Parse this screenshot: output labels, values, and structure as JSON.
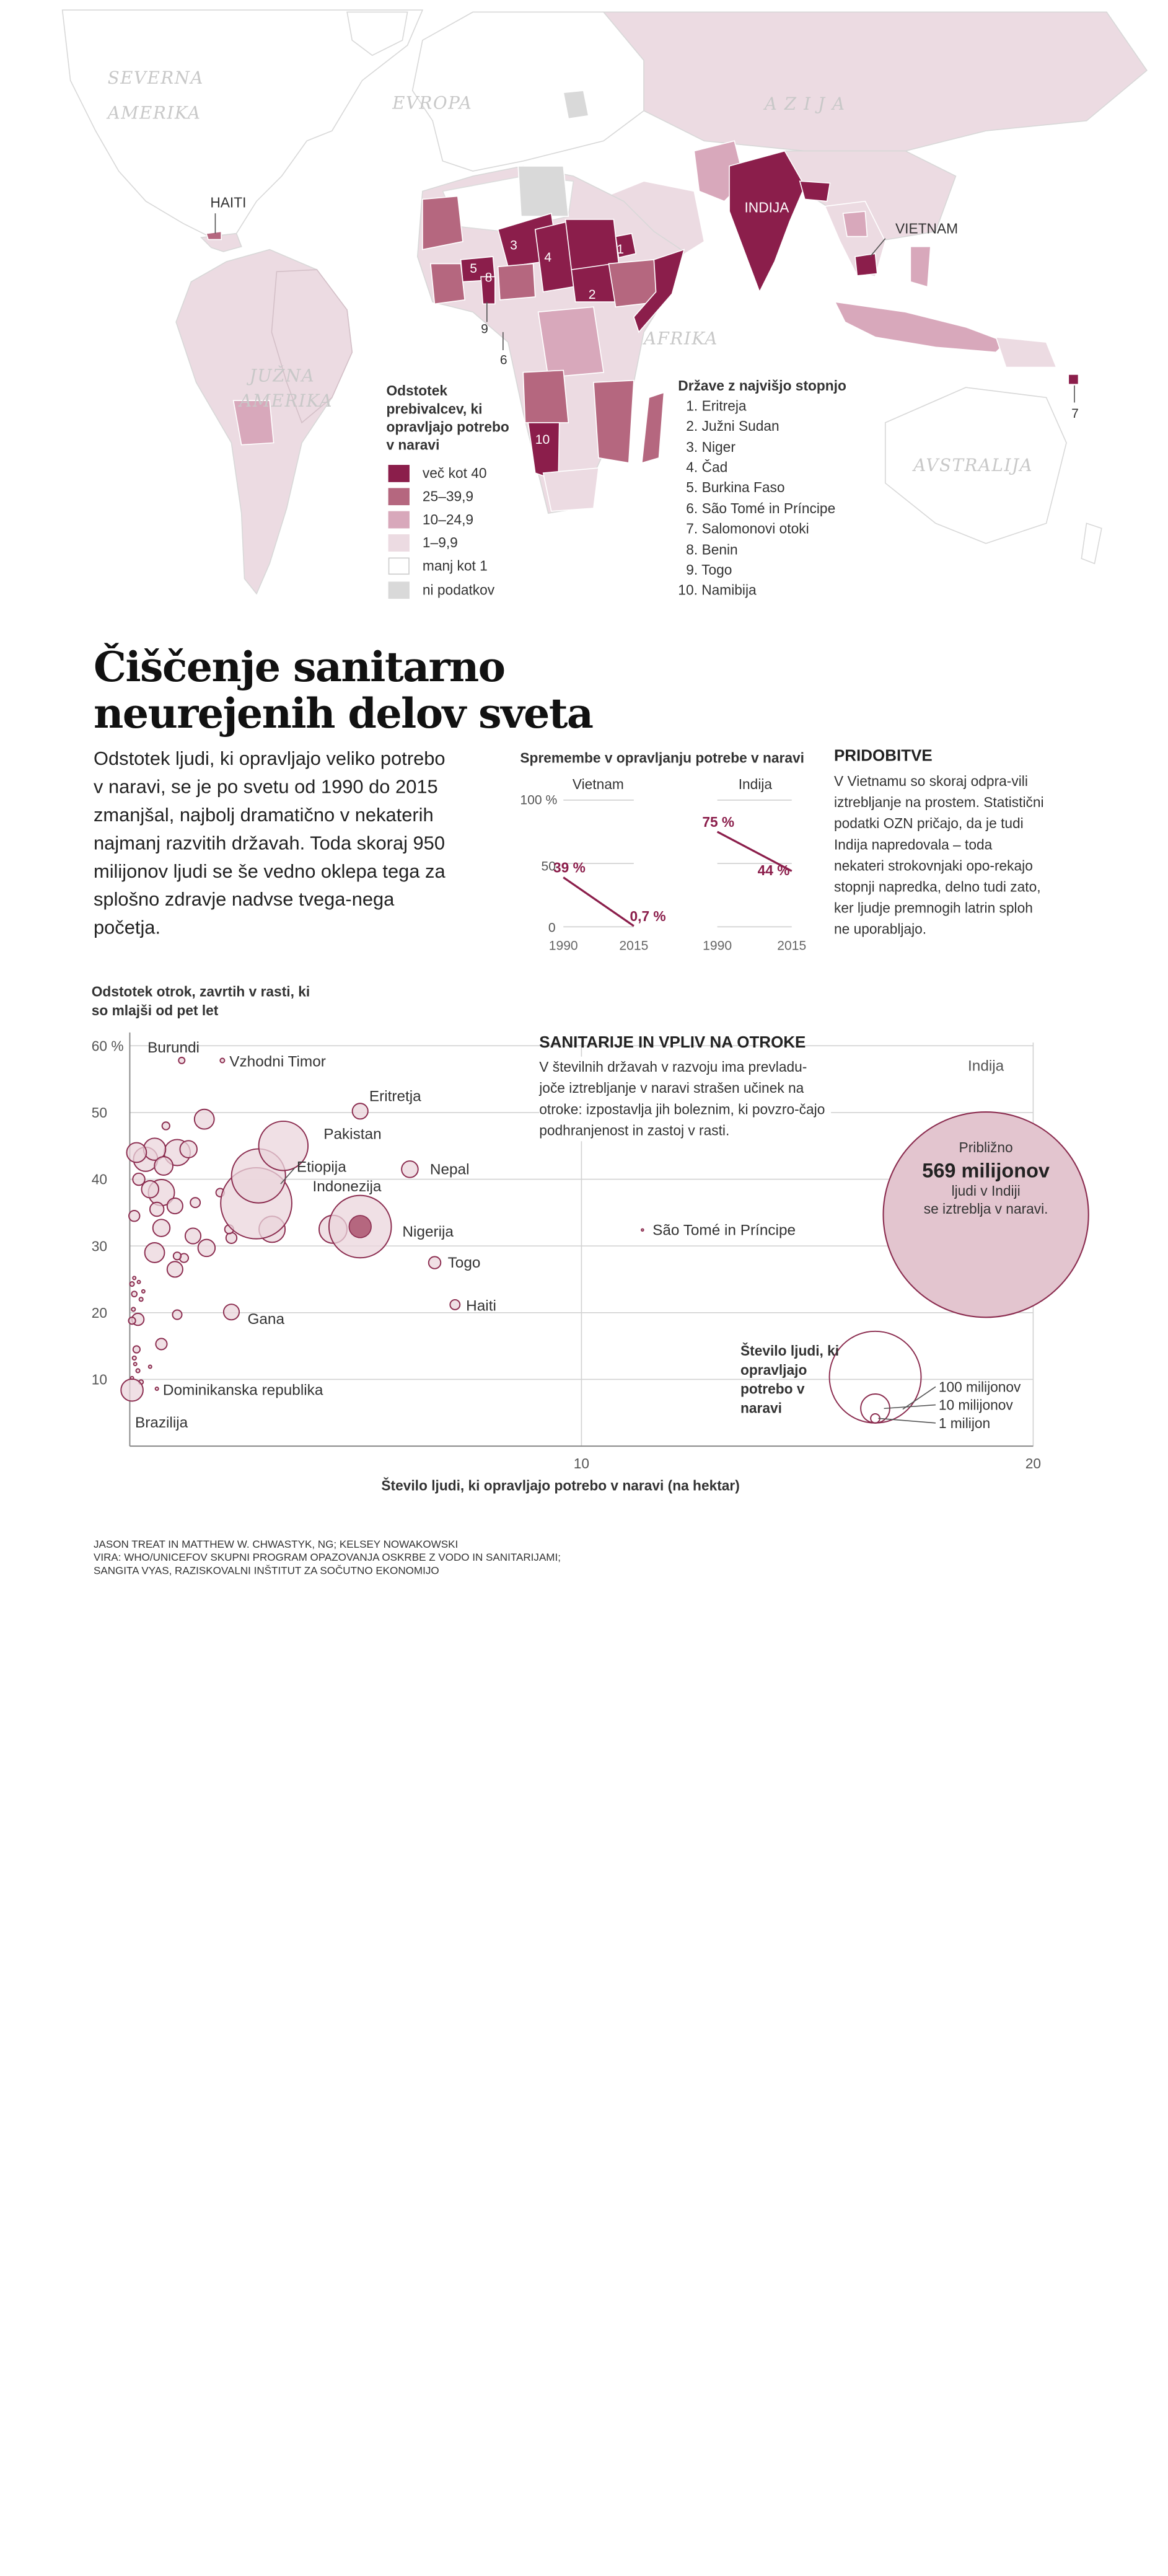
{
  "map": {
    "continents": {
      "north_america": [
        "SEVERNA",
        "AMERIKA"
      ],
      "europe": "EVROPA",
      "asia": "A Z I J A",
      "africa": "AFRIKA",
      "south_america": [
        "JUŽNA",
        "AMERIKA"
      ],
      "australia": "AVSTRALIJA"
    },
    "country_labels": {
      "haiti": "HAITI",
      "india": "INDIJA",
      "vietnam": "VIETNAM"
    },
    "rank_markers": [
      "1",
      "2",
      "3",
      "4",
      "5",
      "6",
      "7",
      "8",
      "9",
      "10"
    ],
    "legend": {
      "title": "Odstotek prebivalcev, ki opravljajo potrebo v naravi",
      "items": [
        {
          "label": "več kot 40",
          "color": "#8b1e4b"
        },
        {
          "label": "25–39,9",
          "color": "#b5677f"
        },
        {
          "label": "10–24,9",
          "color": "#d8a8bb"
        },
        {
          "label": "1–9,9",
          "color": "#ecdbe2"
        },
        {
          "label": "manj kot 1",
          "color": "#ffffff"
        },
        {
          "label": "ni podatkov",
          "color": "#d9d9d9"
        }
      ]
    },
    "top10": {
      "title": "Države z najvišjo stopnjo",
      "items": [
        "1. Eritreja",
        "2. Južni Sudan",
        "3. Niger",
        "4. Čad",
        "5. Burkina Faso",
        "6. São Tomé in Príncipe",
        "7. Salomonovi otoki",
        "8. Benin",
        "9. Togo",
        "10. Namibija"
      ]
    }
  },
  "article": {
    "headline_line1": "Čiščenje sanitarno",
    "headline_line2": "neurejenih delov sveta",
    "intro": "Odstotek ljudi, ki opravljajo veliko potrebo v naravi, se je po svetu od 1990 do 2015 zmanjšal, najbolj dramatično v nekaterih najmanj razvitih državah. Toda skoraj 950 milijonov ljudi se še vedno oklepa tega za splošno zdravje nadvse tvega-nega početja.",
    "sidebar_title": "PRIDOBITVE",
    "sidebar_body": "V Vietnamu so skoraj odpra-vili iztrebljanje na prostem. Statistični podatki OZN pričajo, da je tudi Indija napredovala – toda nekateri strokovnjaki opo-rekajo stopnji napredka, delno tudi zato, ker ljudje premnogih latrin sploh ne uporabljajo.",
    "credits": [
      "JASON TREAT IN MATTHEW W. CHWASTYK, NG; KELSEY NOWAKOWSKI",
      "VIRA: WHO/UNICEFOV SKUPNI PROGRAM OPAZOVANJA OSKRBE Z VODO IN SANITARIJAMI;",
      "SANGITA VYAS, RAZISKOVALNI INŠTITUT ZA SOČUTNO EKONOMIJO"
    ]
  },
  "colors": {
    "dark": "#8b1e4b",
    "mid": "#b5677f",
    "light": "#d8a8bb",
    "pale": "#ecdbe2",
    "nodata": "#d9d9d9",
    "bubble_fill": "#ebd5dc",
    "bubble_stroke": "#8b2c4f"
  },
  "chart_data": [
    {
      "type": "line",
      "title": "Spremembe v opravljanju potrebe v naravi",
      "yticks": [
        "100 %",
        "50",
        "0"
      ],
      "ylim": [
        0,
        100
      ],
      "panels": [
        {
          "name": "Vietnam",
          "x": [
            1990,
            2015
          ],
          "values": [
            39,
            0.7
          ],
          "labels": [
            "39 %",
            "0,7 %"
          ],
          "xtick_labels": [
            "1990",
            "2015"
          ]
        },
        {
          "name": "Indija",
          "x": [
            1990,
            2015
          ],
          "values": [
            75,
            44
          ],
          "labels": [
            "75 %",
            "44 %"
          ],
          "xtick_labels": [
            "1990",
            "2015"
          ]
        }
      ]
    },
    {
      "type": "scatter",
      "title": "SANITARIJE IN VPLIV NA OTROKE",
      "subtitle": "V številnih državah v razvoju ima prevladu-joče iztrebljanje v naravi strašen učinek na otroke: izpostavlja jih boleznim, ki povzro-čajo podhranjenost in zastoj v rasti.",
      "xlabel": "Število ljudi, ki opravljajo potrebo v naravi (na hektar)",
      "ylabel": "Odstotek otrok, zavrtih v rasti, ki so mlajši od pet let",
      "xlim": [
        0,
        20
      ],
      "ylim": [
        0,
        62
      ],
      "xtick_labels": [
        "10",
        "20"
      ],
      "ytick_labels": [
        "60 %",
        "50",
        "40",
        "30",
        "20",
        "10"
      ],
      "size_legend": {
        "title": "Število ljudi, ki opravljajo potrebo v naravi",
        "items": [
          "100 milijonov",
          "10 milijonov",
          "1 milijon"
        ],
        "values_millions": [
          100,
          10,
          1
        ]
      },
      "india_annotation": {
        "name": "Indija",
        "line1": "Približno",
        "line2": "569 milijonov",
        "line3": "ljudi v Indiji",
        "line4": "se iztreblja v naravi."
      },
      "labeled_points": [
        {
          "name": "Burundi",
          "x": 1.15,
          "y": 57.8,
          "size": 0.4
        },
        {
          "name": "Vzhodni Timor",
          "x": 2.05,
          "y": 57.8,
          "size": 0.2
        },
        {
          "name": "Eritretja",
          "x": 5.1,
          "y": 50.2,
          "size": 2.5
        },
        {
          "name": "Pakistan",
          "x": 3.4,
          "y": 45.0,
          "size": 25
        },
        {
          "name": "Etiopija",
          "x": 2.85,
          "y": 40.5,
          "size": 30
        },
        {
          "name": "Indonezija",
          "x": 2.8,
          "y": 36.4,
          "size": 52
        },
        {
          "name": "Nepal",
          "x": 6.2,
          "y": 41.5,
          "size": 2.8
        },
        {
          "name": "Nigerija",
          "x": 5.1,
          "y": 32.9,
          "size": 40
        },
        {
          "name": "Togo",
          "x": 6.75,
          "y": 27.5,
          "size": 1.5
        },
        {
          "name": "Haiti",
          "x": 7.2,
          "y": 21.2,
          "size": 1.0
        },
        {
          "name": "Gana",
          "x": 2.25,
          "y": 20.1,
          "size": 2.5
        },
        {
          "name": "São Tomé in Príncipe",
          "x": 11.35,
          "y": 32.4,
          "size": 0.05
        },
        {
          "name": "Dominikanska republika",
          "x": 0.6,
          "y": 8.6,
          "size": 0.1
        },
        {
          "name": "Brazilija",
          "x": 0.05,
          "y": 8.4,
          "size": 5
        }
      ],
      "points": [
        {
          "x": 0.15,
          "y": 44,
          "size": 4
        },
        {
          "x": 0.35,
          "y": 43,
          "size": 6
        },
        {
          "x": 0.55,
          "y": 44.5,
          "size": 5
        },
        {
          "x": 0.75,
          "y": 42,
          "size": 3.5
        },
        {
          "x": 1.05,
          "y": 44,
          "size": 7
        },
        {
          "x": 1.3,
          "y": 44.5,
          "size": 3
        },
        {
          "x": 1.65,
          "y": 49,
          "size": 4
        },
        {
          "x": 0.8,
          "y": 48,
          "size": 0.6
        },
        {
          "x": 0.2,
          "y": 40,
          "size": 1.5
        },
        {
          "x": 0.45,
          "y": 38.5,
          "size": 3
        },
        {
          "x": 0.7,
          "y": 38,
          "size": 7
        },
        {
          "x": 0.6,
          "y": 35.5,
          "size": 2
        },
        {
          "x": 1.0,
          "y": 36,
          "size": 2.5
        },
        {
          "x": 1.45,
          "y": 36.5,
          "size": 1
        },
        {
          "x": 2.0,
          "y": 38,
          "size": 0.7
        },
        {
          "x": 0.1,
          "y": 34.5,
          "size": 1.2
        },
        {
          "x": 0.7,
          "y": 32.7,
          "size": 3
        },
        {
          "x": 1.4,
          "y": 31.5,
          "size": 2.5
        },
        {
          "x": 1.7,
          "y": 29.7,
          "size": 3
        },
        {
          "x": 2.2,
          "y": 32.5,
          "size": 0.8
        },
        {
          "x": 2.25,
          "y": 31.2,
          "size": 1.2
        },
        {
          "x": 3.15,
          "y": 32.5,
          "size": 7
        },
        {
          "x": 4.5,
          "y": 32.5,
          "size": 8
        },
        {
          "x": 0.55,
          "y": 29.0,
          "size": 4
        },
        {
          "x": 1.05,
          "y": 28.5,
          "size": 0.6
        },
        {
          "x": 1.2,
          "y": 28.2,
          "size": 0.8
        },
        {
          "x": 1.0,
          "y": 26.5,
          "size": 2.5
        },
        {
          "x": 0.1,
          "y": 25.2,
          "size": 0.1
        },
        {
          "x": 0.2,
          "y": 24.6,
          "size": 0.1
        },
        {
          "x": 0.05,
          "y": 24.3,
          "size": 0.2
        },
        {
          "x": 0.3,
          "y": 23.2,
          "size": 0.1
        },
        {
          "x": 0.1,
          "y": 22.8,
          "size": 0.3
        },
        {
          "x": 0.25,
          "y": 22.0,
          "size": 0.15
        },
        {
          "x": 0.08,
          "y": 20.5,
          "size": 0.15
        },
        {
          "x": 0.18,
          "y": 19.0,
          "size": 1.5
        },
        {
          "x": 0.05,
          "y": 18.8,
          "size": 0.5
        },
        {
          "x": 1.05,
          "y": 19.7,
          "size": 0.9
        },
        {
          "x": 0.7,
          "y": 15.3,
          "size": 1.3
        },
        {
          "x": 0.15,
          "y": 14.5,
          "size": 0.5
        },
        {
          "x": 0.1,
          "y": 13.2,
          "size": 0.15
        },
        {
          "x": 0.12,
          "y": 12.3,
          "size": 0.1
        },
        {
          "x": 0.18,
          "y": 11.3,
          "size": 0.15
        },
        {
          "x": 0.05,
          "y": 10.2,
          "size": 0.1
        },
        {
          "x": 0.25,
          "y": 9.6,
          "size": 0.2
        },
        {
          "x": 0.45,
          "y": 11.9,
          "size": 0.1
        }
      ],
      "india": {
        "x": 18.7,
        "y": 38.0,
        "size": 569
      }
    }
  ]
}
